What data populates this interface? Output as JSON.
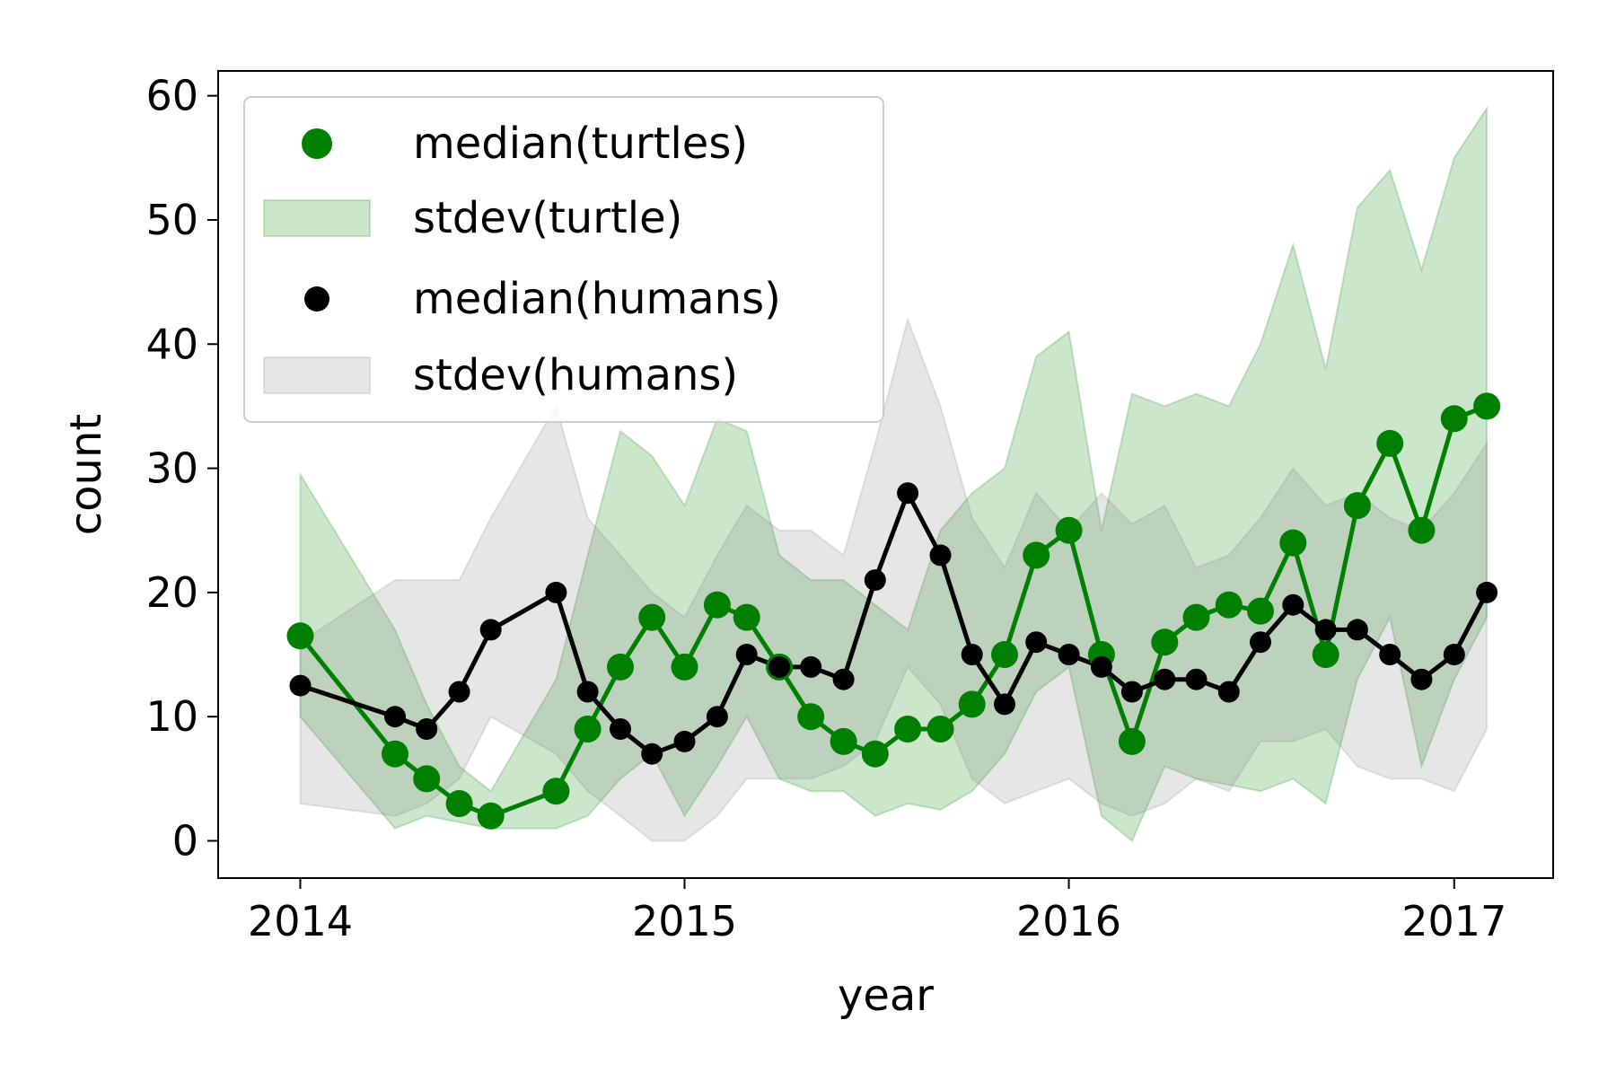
{
  "chart_data": {
    "type": "line",
    "xlabel": "year",
    "ylabel": "count",
    "xlim": [
      "2013-10-15",
      "2017-04-05"
    ],
    "ylim": [
      -3,
      62
    ],
    "x_ticks": [
      "2014",
      "2015",
      "2016",
      "2017"
    ],
    "y_ticks": [
      0,
      10,
      20,
      30,
      40,
      50,
      60
    ],
    "grid": false,
    "legend": {
      "position": "top-left",
      "entries": [
        "median(turtles)",
        "stdev(turtle)",
        "median(humans)",
        "stdev(humans)"
      ]
    },
    "colors": {
      "turtles": "#008000",
      "turtles_band": "#008000",
      "humans": "#000000",
      "humans_band": "#808080"
    },
    "series": [
      {
        "name": "median(turtles)",
        "kind": "line-markers",
        "color": "#008000",
        "x": [
          "2014-01-01",
          "2014-04-01",
          "2014-05-01",
          "2014-06-01",
          "2014-07-01",
          "2014-09-01",
          "2014-10-01",
          "2014-11-01",
          "2014-12-01",
          "2015-01-01",
          "2015-02-01",
          "2015-03-01",
          "2015-04-01",
          "2015-05-01",
          "2015-06-01",
          "2015-07-01",
          "2015-08-01",
          "2015-09-01",
          "2015-10-01",
          "2015-11-01",
          "2015-12-01",
          "2016-01-01",
          "2016-02-01",
          "2016-03-01",
          "2016-04-01",
          "2016-05-01",
          "2016-06-01",
          "2016-07-01",
          "2016-08-01",
          "2016-09-01",
          "2016-10-01",
          "2016-11-01",
          "2016-12-01",
          "2017-01-01",
          "2017-02-01"
        ],
        "y": [
          16.5,
          7,
          5,
          3,
          2,
          4,
          9,
          14,
          18,
          14,
          19,
          18,
          14,
          10,
          8,
          7,
          9,
          9,
          11,
          15,
          23,
          25,
          15,
          8,
          16,
          18,
          19,
          18.5,
          24,
          15,
          27,
          32,
          25,
          34,
          35
        ]
      },
      {
        "name": "stdev(turtle)",
        "kind": "band",
        "color": "#008000",
        "x": [
          "2014-01-01",
          "2014-04-01",
          "2014-05-01",
          "2014-06-01",
          "2014-07-01",
          "2014-09-01",
          "2014-10-01",
          "2014-11-01",
          "2014-12-01",
          "2015-01-01",
          "2015-02-01",
          "2015-03-01",
          "2015-04-01",
          "2015-05-01",
          "2015-06-01",
          "2015-07-01",
          "2015-08-01",
          "2015-09-01",
          "2015-10-01",
          "2015-11-01",
          "2015-12-01",
          "2016-01-01",
          "2016-02-01",
          "2016-03-01",
          "2016-04-01",
          "2016-05-01",
          "2016-06-01",
          "2016-07-01",
          "2016-08-01",
          "2016-09-01",
          "2016-10-01",
          "2016-11-01",
          "2016-12-01",
          "2017-01-01",
          "2017-02-01"
        ],
        "lower": [
          10,
          1,
          2,
          1.5,
          1,
          1,
          2,
          5,
          7,
          2,
          6,
          10,
          5,
          4,
          4,
          2,
          3,
          2.5,
          4,
          7,
          12,
          14,
          2,
          0,
          6,
          5,
          4.5,
          4,
          5,
          3,
          13,
          18,
          6,
          13,
          18
        ],
        "upper": [
          29.5,
          17,
          11,
          6,
          4,
          13,
          23,
          33,
          31,
          27,
          34,
          33,
          23,
          21,
          21,
          19,
          17,
          25,
          28,
          30,
          39,
          41,
          25,
          36,
          35,
          36,
          35,
          40,
          48,
          38,
          51,
          54,
          46,
          55,
          59
        ]
      },
      {
        "name": "median(humans)",
        "kind": "line-markers",
        "color": "#000000",
        "x": [
          "2014-01-01",
          "2014-04-01",
          "2014-05-01",
          "2014-06-01",
          "2014-07-01",
          "2014-09-01",
          "2014-10-01",
          "2014-11-01",
          "2014-12-01",
          "2015-01-01",
          "2015-02-01",
          "2015-03-01",
          "2015-04-01",
          "2015-05-01",
          "2015-06-01",
          "2015-07-01",
          "2015-08-01",
          "2015-09-01",
          "2015-10-01",
          "2015-11-01",
          "2015-12-01",
          "2016-01-01",
          "2016-02-01",
          "2016-03-01",
          "2016-04-01",
          "2016-05-01",
          "2016-06-01",
          "2016-07-01",
          "2016-08-01",
          "2016-09-01",
          "2016-10-01",
          "2016-11-01",
          "2016-12-01",
          "2017-01-01",
          "2017-02-01"
        ],
        "y": [
          12.5,
          10,
          9,
          12,
          17,
          20,
          12,
          9,
          7,
          8,
          10,
          15,
          14,
          14,
          13,
          21,
          28,
          23,
          15,
          11,
          16,
          15,
          14,
          12,
          13,
          13,
          12,
          16,
          19,
          17,
          17,
          15,
          13,
          15,
          20
        ]
      },
      {
        "name": "stdev(humans)",
        "kind": "band",
        "color": "#808080",
        "x": [
          "2014-01-01",
          "2014-04-01",
          "2014-05-01",
          "2014-06-01",
          "2014-07-01",
          "2014-09-01",
          "2014-10-01",
          "2014-11-01",
          "2014-12-01",
          "2015-01-01",
          "2015-02-01",
          "2015-03-01",
          "2015-04-01",
          "2015-05-01",
          "2015-06-01",
          "2015-07-01",
          "2015-08-01",
          "2015-09-01",
          "2015-10-01",
          "2015-11-01",
          "2015-12-01",
          "2016-01-01",
          "2016-02-01",
          "2016-03-01",
          "2016-04-01",
          "2016-05-01",
          "2016-06-01",
          "2016-07-01",
          "2016-08-01",
          "2016-09-01",
          "2016-10-01",
          "2016-11-01",
          "2016-12-01",
          "2017-01-01",
          "2017-02-01"
        ],
        "lower": [
          3,
          2,
          3,
          5,
          10,
          7,
          4,
          2,
          0,
          0,
          2,
          5,
          5,
          5,
          6,
          8,
          14,
          11,
          5,
          3,
          4,
          5,
          3,
          2,
          3,
          5,
          4,
          8,
          8,
          9,
          6,
          5,
          5,
          4,
          9
        ],
        "upper": [
          16,
          21,
          21,
          21,
          26,
          35,
          26,
          23,
          20,
          18,
          23,
          27,
          25,
          25,
          23,
          32,
          42,
          35,
          26,
          22,
          28,
          25,
          28,
          25.5,
          27,
          22,
          23,
          26,
          30,
          27,
          28,
          26,
          25,
          28,
          32
        ]
      }
    ]
  }
}
